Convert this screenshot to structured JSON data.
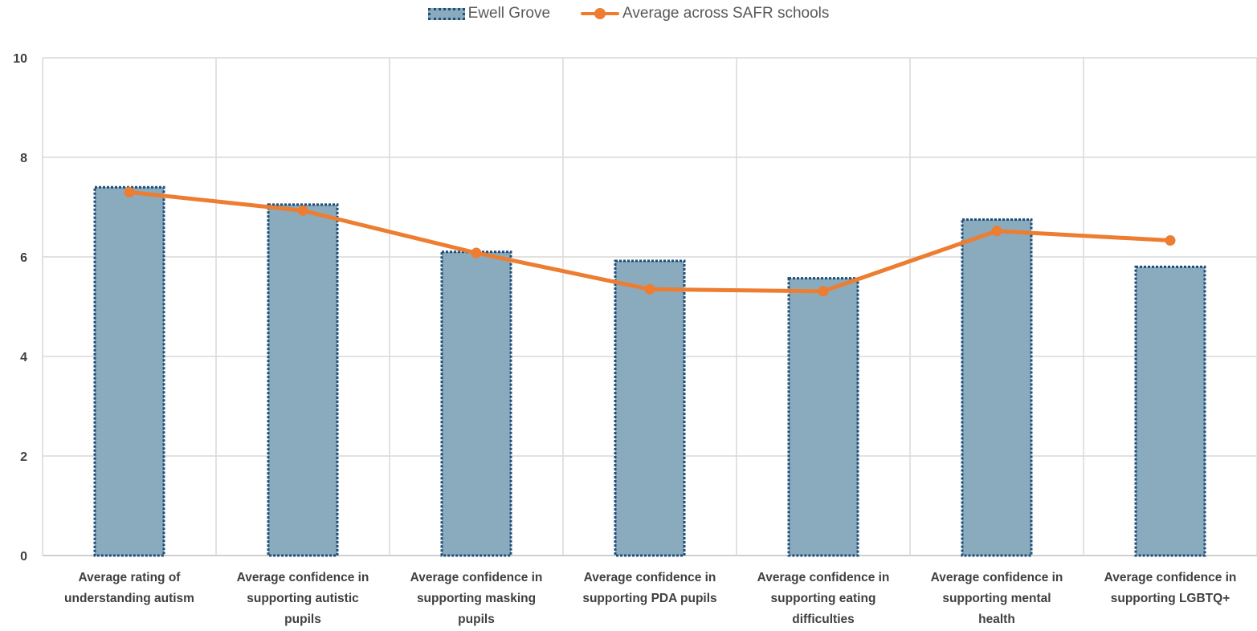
{
  "chart_data": {
    "type": "bar",
    "categories": [
      [
        "Average rating of",
        "understanding  autism"
      ],
      [
        "Average confidence in",
        "supporting autistic",
        "pupils"
      ],
      [
        "Average confidence in",
        "supporting masking",
        "pupils"
      ],
      [
        "Average confidence in",
        "supporting PDA pupils"
      ],
      [
        "Average confidence in",
        "supporting eating",
        "difficulties"
      ],
      [
        "Average confidence in",
        "supporting mental",
        "health"
      ],
      [
        "Average confidence in",
        "supporting LGBTQ+"
      ]
    ],
    "series": [
      {
        "name": "Ewell Grove",
        "type": "bar",
        "color": "#8aabbd",
        "border_color": "#1f4e79",
        "values": [
          7.4,
          7.05,
          6.1,
          5.92,
          5.57,
          6.75,
          5.8
        ]
      },
      {
        "name": "Average across SAFR schools",
        "type": "line",
        "color": "#ed7d31",
        "values": [
          7.3,
          6.93,
          6.08,
          5.35,
          5.31,
          6.52,
          6.33
        ]
      }
    ],
    "ylim": [
      0,
      10
    ],
    "yticks": [
      0,
      2,
      4,
      6,
      8,
      10
    ],
    "grid": true,
    "legend_position": "top-center",
    "title": "",
    "xlabel": "",
    "ylabel": ""
  }
}
